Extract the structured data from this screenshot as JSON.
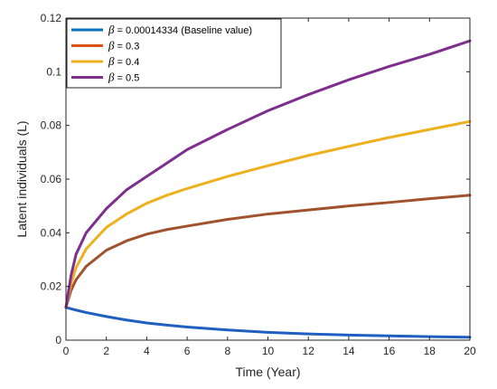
{
  "chart_data": {
    "type": "line",
    "xlabel": "Time (Year)",
    "ylabel": "Latent individuals (L)",
    "xlim": [
      0,
      20
    ],
    "ylim": [
      0,
      0.12
    ],
    "xticks": [
      "0",
      "2",
      "4",
      "6",
      "8",
      "10",
      "12",
      "14",
      "16",
      "18",
      "20"
    ],
    "yticks": [
      "0",
      "0.02",
      "0.04",
      "0.06",
      "0.08",
      "0.1",
      "0.12"
    ],
    "grid": false,
    "legend_position": "top-left",
    "series": [
      {
        "name_symbol": "β",
        "name_rest": " = 0.00014334 (Baseline value)",
        "color": "#1f5fbf",
        "x": [
          0,
          0.5,
          1,
          2,
          3,
          4,
          5,
          6,
          8,
          10,
          12,
          14,
          16,
          18,
          20
        ],
        "y": [
          0.0122,
          0.0112,
          0.0103,
          0.0088,
          0.0075,
          0.0064,
          0.0056,
          0.0049,
          0.0038,
          0.0029,
          0.0023,
          0.0019,
          0.0016,
          0.0013,
          0.0011
        ]
      },
      {
        "name_symbol": "β",
        "name_rest": " = 0.3",
        "color": "#a0522d",
        "x": [
          0,
          0.25,
          0.5,
          1,
          2,
          3,
          4,
          5,
          6,
          8,
          10,
          12,
          14,
          16,
          18,
          20
        ],
        "y": [
          0.0122,
          0.0185,
          0.0225,
          0.0275,
          0.0335,
          0.037,
          0.0395,
          0.0412,
          0.0425,
          0.045,
          0.047,
          0.0485,
          0.05,
          0.0513,
          0.0527,
          0.054
        ]
      },
      {
        "name_symbol": "β",
        "name_rest": " = 0.4",
        "color": "#edb120",
        "x": [
          0,
          0.25,
          0.5,
          1,
          2,
          3,
          4,
          5,
          6,
          8,
          10,
          12,
          14,
          16,
          18,
          20
        ],
        "y": [
          0.0122,
          0.021,
          0.027,
          0.034,
          0.042,
          0.047,
          0.051,
          0.054,
          0.0565,
          0.061,
          0.065,
          0.0688,
          0.0722,
          0.0755,
          0.0785,
          0.0815
        ]
      },
      {
        "name_symbol": "β",
        "name_rest": " = 0.5",
        "color": "#7e2f8e",
        "x": [
          0,
          0.25,
          0.5,
          1,
          2,
          3,
          4,
          5,
          6,
          8,
          10,
          12,
          14,
          16,
          18,
          20
        ],
        "y": [
          0.0122,
          0.024,
          0.032,
          0.04,
          0.049,
          0.056,
          0.061,
          0.066,
          0.071,
          0.0785,
          0.0855,
          0.0915,
          0.097,
          0.102,
          0.1065,
          0.1115
        ]
      }
    ]
  },
  "legend_colors_shown": [
    "#0072bd",
    "#d95319",
    "#edb120",
    "#7e2f8e"
  ]
}
